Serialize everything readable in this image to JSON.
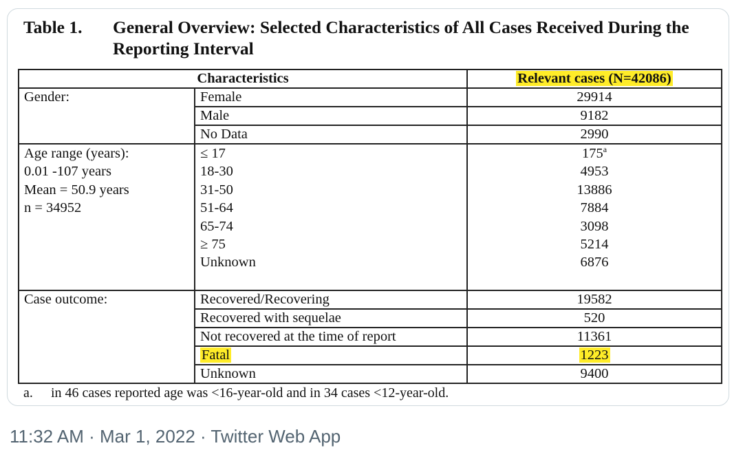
{
  "table": {
    "number": "Table 1.",
    "title": "General Overview: Selected Characteristics of All Cases Received During the Reporting Interval",
    "header_characteristics": "Characteristics",
    "header_cases": "Relevant cases (N=42086)",
    "gender": {
      "label": "Gender:",
      "rows": [
        {
          "label": "Female",
          "value": "29914"
        },
        {
          "label": "Male",
          "value": "9182"
        },
        {
          "label": "No Data",
          "value": "2990"
        }
      ]
    },
    "age": {
      "label_lines": [
        "Age range (years):",
        "0.01 -107 years",
        "Mean = 50.9 years",
        "n = 34952"
      ],
      "rows": [
        {
          "label": "≤ 17",
          "value": "175",
          "sup": "a"
        },
        {
          "label": "18-30",
          "value": "4953"
        },
        {
          "label": "31-50",
          "value": "13886"
        },
        {
          "label": "51-64",
          "value": "7884"
        },
        {
          "label": "65-74",
          "value": "3098"
        },
        {
          "label": "≥ 75",
          "value": "5214"
        },
        {
          "label": "Unknown",
          "value": "6876"
        }
      ]
    },
    "outcome": {
      "label": "Case outcome:",
      "rows": [
        {
          "label": "Recovered/Recovering",
          "value": "19582"
        },
        {
          "label": "Recovered with sequelae",
          "value": "520"
        },
        {
          "label": "Not recovered at the time of report",
          "value": "11361"
        },
        {
          "label": "Fatal",
          "value": "1223"
        },
        {
          "label": "Unknown",
          "value": "9400"
        }
      ]
    },
    "footnote_marker": "a.",
    "footnote_text": "in 46 cases reported age was <16-year-old and in 34 cases <12-year-old."
  },
  "tweet": {
    "timestamp": "11:32 AM · Mar 1, 2022 · Twitter Web App"
  },
  "colors": {
    "highlight": "#ffec28",
    "meta_text": "#536471"
  }
}
